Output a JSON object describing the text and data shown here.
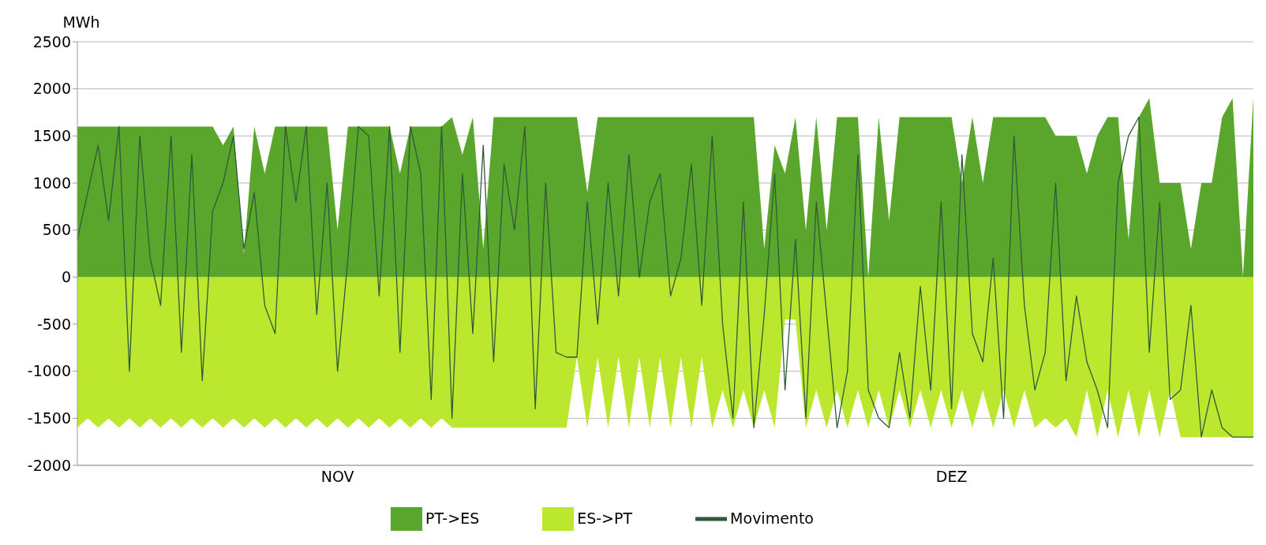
{
  "chart_data": {
    "type": "area",
    "ylabel": "MWh",
    "categories": [
      null,
      null,
      null,
      null,
      null,
      null,
      null,
      null,
      null,
      null,
      null,
      null,
      null,
      null,
      null,
      null,
      null,
      null,
      null,
      null,
      null,
      null,
      null,
      null,
      null,
      "NOV",
      null,
      null,
      null,
      null,
      null,
      null,
      null,
      null,
      null,
      null,
      null,
      null,
      null,
      null,
      null,
      null,
      null,
      null,
      null,
      null,
      null,
      null,
      null,
      null,
      null,
      null,
      null,
      null,
      null,
      null,
      null,
      null,
      null,
      null,
      null,
      null,
      null,
      null,
      null,
      null,
      null,
      null,
      null,
      null,
      null,
      null,
      null,
      null,
      null,
      null,
      null,
      null,
      null,
      null,
      null,
      null,
      null,
      null,
      "DEZ",
      null,
      null,
      null,
      null,
      null,
      null,
      null,
      null,
      null,
      null,
      null,
      null,
      null,
      null,
      null,
      null,
      null,
      null,
      null,
      null,
      null,
      null,
      null,
      null,
      null,
      null,
      null,
      null,
      null
    ],
    "series": [
      {
        "name": "PT->ES",
        "color": "#5aa62c",
        "values": [
          1600,
          1600,
          1600,
          1600,
          1600,
          1600,
          1600,
          1600,
          1600,
          1600,
          1600,
          1600,
          1600,
          1600,
          1400,
          1600,
          250,
          1600,
          1100,
          1600,
          1600,
          1600,
          1600,
          1600,
          1600,
          500,
          1600,
          1600,
          1600,
          1600,
          1600,
          1100,
          1600,
          1600,
          1600,
          1600,
          1700,
          1300,
          1700,
          300,
          1700,
          1700,
          1700,
          1700,
          1700,
          1700,
          1700,
          1700,
          1700,
          900,
          1700,
          1700,
          1700,
          1700,
          1700,
          1700,
          1700,
          1700,
          1700,
          1700,
          1700,
          1700,
          1700,
          1700,
          1700,
          1700,
          300,
          1400,
          1100,
          1700,
          500,
          1700,
          500,
          1700,
          1700,
          1700,
          0,
          1700,
          600,
          1700,
          1700,
          1700,
          1700,
          1700,
          1700,
          1000,
          1700,
          1000,
          1700,
          1700,
          1700,
          1700,
          1700,
          1700,
          1500,
          1500,
          1500,
          1100,
          1500,
          1700,
          1700,
          400,
          1700,
          1900,
          1000,
          1000,
          1000,
          300,
          1000,
          1000,
          1700,
          1900,
          0,
          1900
        ]
      },
      {
        "name": "ES->PT",
        "color": "#bbe82e",
        "values": [
          -1600,
          -1500,
          -1600,
          -1500,
          -1600,
          -1500,
          -1600,
          -1500,
          -1600,
          -1500,
          -1600,
          -1500,
          -1600,
          -1500,
          -1600,
          -1500,
          -1600,
          -1500,
          -1600,
          -1500,
          -1600,
          -1500,
          -1600,
          -1500,
          -1600,
          -1500,
          -1600,
          -1500,
          -1600,
          -1500,
          -1600,
          -1500,
          -1600,
          -1500,
          -1600,
          -1500,
          -1600,
          -1600,
          -1600,
          -1600,
          -1600,
          -1600,
          -1600,
          -1600,
          -1600,
          -1600,
          -1600,
          -1600,
          -850,
          -1600,
          -850,
          -1600,
          -850,
          -1600,
          -850,
          -1600,
          -850,
          -1600,
          -850,
          -1600,
          -850,
          -1600,
          -1200,
          -1600,
          -1200,
          -1600,
          -1200,
          -1600,
          -450,
          -450,
          -1600,
          -1200,
          -1600,
          -1200,
          -1600,
          -1200,
          -1600,
          -1200,
          -1600,
          -1200,
          -1600,
          -1200,
          -1600,
          -1200,
          -1600,
          -1200,
          -1600,
          -1200,
          -1600,
          -1200,
          -1600,
          -1200,
          -1600,
          -1500,
          -1600,
          -1500,
          -1700,
          -1200,
          -1700,
          -1200,
          -1700,
          -1200,
          -1700,
          -1200,
          -1700,
          -1200,
          -1700,
          -1700,
          -1700,
          -1700,
          -1700,
          -1700,
          -1700,
          -1700
        ]
      },
      {
        "name": "Movimento",
        "type": "line",
        "color": "#2f5a3a",
        "values": [
          400,
          900,
          1400,
          600,
          1600,
          -1000,
          1500,
          200,
          -300,
          1500,
          -800,
          1300,
          -1100,
          700,
          1000,
          1500,
          300,
          900,
          -300,
          -600,
          1600,
          800,
          1600,
          -400,
          1000,
          -1000,
          200,
          1600,
          1500,
          -200,
          1600,
          -800,
          1600,
          1100,
          -1300,
          1600,
          -1500,
          1100,
          -600,
          1400,
          -900,
          1200,
          500,
          1600,
          -1400,
          1000,
          -800,
          -850,
          -850,
          800,
          -500,
          1000,
          -200,
          1300,
          0,
          800,
          1100,
          -200,
          200,
          1200,
          -300,
          1500,
          -500,
          -1500,
          800,
          -1600,
          -400,
          1100,
          -1200,
          400,
          -1500,
          800,
          -400,
          -1600,
          -1000,
          1300,
          -1200,
          -1500,
          -1600,
          -800,
          -1500,
          -100,
          -1200,
          800,
          -1400,
          1300,
          -600,
          -900,
          200,
          -1500,
          1500,
          -300,
          -1200,
          -800,
          1000,
          -1100,
          -200,
          -900,
          -1200,
          -1600,
          1000,
          1500,
          1700,
          -800,
          800,
          -1300,
          -1200,
          -300,
          -1700,
          -1200,
          -1600,
          -1700,
          -1700,
          -1700
        ]
      }
    ],
    "ylim": [
      -2000,
      2500
    ],
    "yticks": [
      -2000,
      -1500,
      -1000,
      -500,
      0,
      500,
      1000,
      1500,
      2000,
      2500
    ],
    "grid": "y",
    "legend": "bottom",
    "marker": "none",
    "line_style": "solid"
  }
}
